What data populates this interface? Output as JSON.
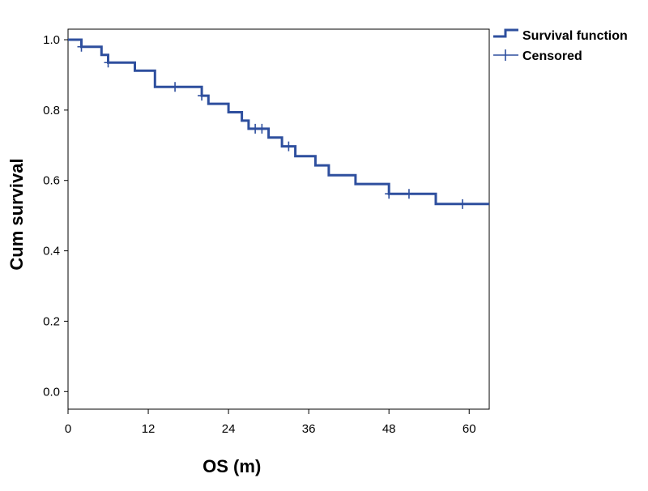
{
  "chart_data": {
    "type": "line",
    "subtype": "kaplan-meier-step",
    "xlabel": "OS (m)",
    "ylabel": "Cum survival",
    "xlim": [
      0,
      63
    ],
    "ylim": [
      -0.05,
      1.03
    ],
    "x_ticks": [
      0,
      12,
      24,
      36,
      48,
      60
    ],
    "y_ticks": [
      0.0,
      0.2,
      0.4,
      0.6,
      0.8,
      1.0
    ],
    "x_tick_labels": [
      "0",
      "12",
      "24",
      "36",
      "48",
      "60"
    ],
    "y_tick_labels": [
      "0.0",
      "0.2",
      "0.4",
      "0.6",
      "0.8",
      "1.0"
    ],
    "grid": false,
    "legend_position": "top-right, outside plot",
    "series": [
      {
        "name": "Survival function",
        "color": "#2e4f9e",
        "step_points": [
          [
            0,
            1.0
          ],
          [
            2,
            1.0
          ],
          [
            2,
            0.98
          ],
          [
            5,
            0.98
          ],
          [
            5,
            0.957
          ],
          [
            6,
            0.957
          ],
          [
            6,
            0.935
          ],
          [
            10,
            0.935
          ],
          [
            10,
            0.912
          ],
          [
            13,
            0.912
          ],
          [
            13,
            0.866
          ],
          [
            20,
            0.866
          ],
          [
            20,
            0.841
          ],
          [
            21,
            0.841
          ],
          [
            21,
            0.818
          ],
          [
            24,
            0.818
          ],
          [
            24,
            0.794
          ],
          [
            26,
            0.794
          ],
          [
            26,
            0.77
          ],
          [
            27,
            0.77
          ],
          [
            27,
            0.747
          ],
          [
            30,
            0.747
          ],
          [
            30,
            0.722
          ],
          [
            32,
            0.722
          ],
          [
            32,
            0.697
          ],
          [
            34,
            0.697
          ],
          [
            34,
            0.669
          ],
          [
            37,
            0.669
          ],
          [
            37,
            0.643
          ],
          [
            39,
            0.643
          ],
          [
            39,
            0.615
          ],
          [
            43,
            0.615
          ],
          [
            43,
            0.59
          ],
          [
            48,
            0.59
          ],
          [
            48,
            0.562
          ],
          [
            55,
            0.562
          ],
          [
            55,
            0.533
          ],
          [
            63,
            0.533
          ]
        ]
      },
      {
        "name": "Censored",
        "color": "#2e4f9e",
        "marker": "+",
        "points": [
          [
            2,
            0.98
          ],
          [
            6,
            0.935
          ],
          [
            16,
            0.866
          ],
          [
            20,
            0.841
          ],
          [
            28,
            0.747
          ],
          [
            29,
            0.747
          ],
          [
            33,
            0.697
          ],
          [
            48,
            0.562
          ],
          [
            51,
            0.562
          ],
          [
            59,
            0.533
          ]
        ]
      }
    ]
  }
}
